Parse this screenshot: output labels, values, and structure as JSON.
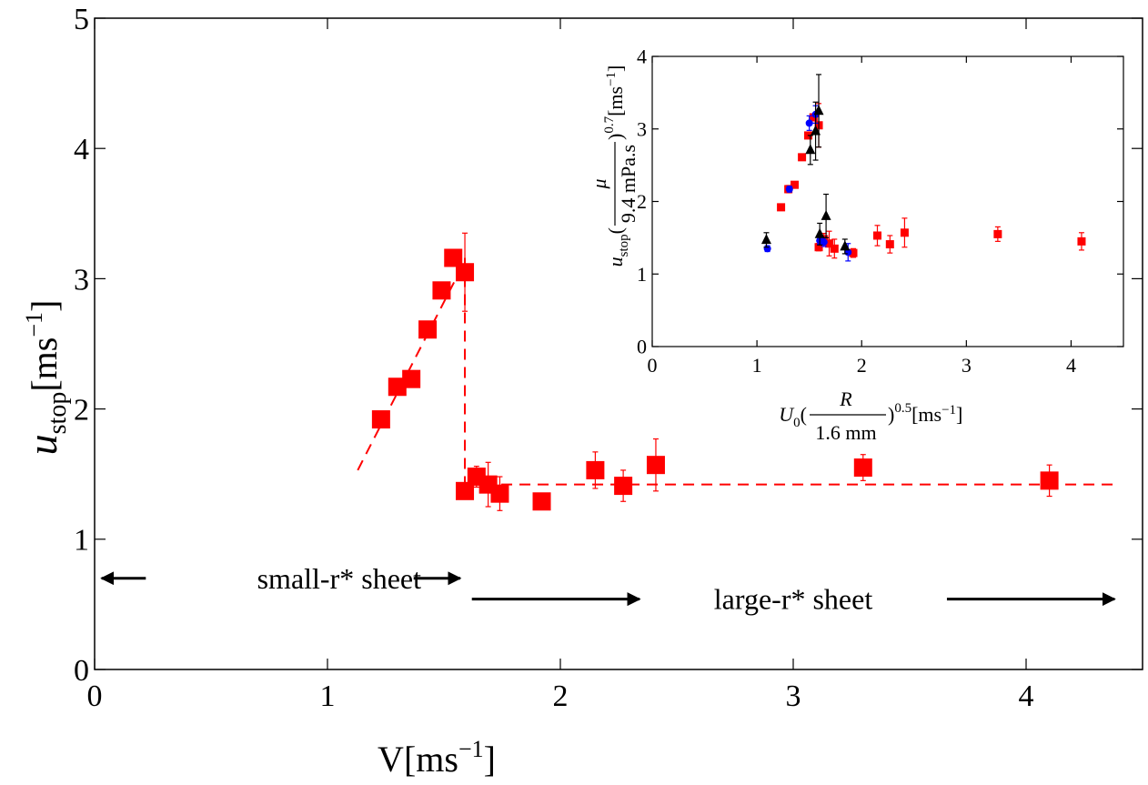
{
  "chart_data": [
    {
      "type": "scatter",
      "xlabel": {
        "base": "V",
        "unit": "[ms",
        "exp": "−1",
        "close": "]"
      },
      "ylabel": {
        "base": "u",
        "sub": "stop",
        "unit": "[ms",
        "exp": "−1",
        "close": "]"
      },
      "xlim": [
        0,
        4.5
      ],
      "ylim": [
        0,
        5
      ],
      "xticks": [
        "0",
        "1",
        "2",
        "3",
        "4"
      ],
      "yticks": [
        "0",
        "1",
        "2",
        "3",
        "4",
        "5"
      ],
      "grid": false,
      "series": [
        {
          "marker": "square",
          "color": "#ff0000",
          "points": [
            {
              "x": 1.23,
              "y": 1.92,
              "err": 0.03
            },
            {
              "x": 1.3,
              "y": 2.17,
              "err": 0.05
            },
            {
              "x": 1.36,
              "y": 2.23,
              "err": 0.04
            },
            {
              "x": 1.43,
              "y": 2.61,
              "err": 0.04
            },
            {
              "x": 1.49,
              "y": 2.91,
              "err": 0.04
            },
            {
              "x": 1.54,
              "y": 3.16,
              "err": 0.04
            },
            {
              "x": 1.59,
              "y": 3.05,
              "err": 0.3
            },
            {
              "x": 1.59,
              "y": 1.37,
              "err": 0.05
            },
            {
              "x": 1.64,
              "y": 1.48,
              "err": 0.08
            },
            {
              "x": 1.69,
              "y": 1.42,
              "err": 0.17
            },
            {
              "x": 1.74,
              "y": 1.35,
              "err": 0.13
            },
            {
              "x": 1.92,
              "y": 1.29,
              "err": 0.06
            },
            {
              "x": 2.15,
              "y": 1.53,
              "err": 0.14
            },
            {
              "x": 2.27,
              "y": 1.41,
              "err": 0.12
            },
            {
              "x": 2.41,
              "y": 1.57,
              "err": 0.2
            },
            {
              "x": 3.3,
              "y": 1.55,
              "err": 0.1
            },
            {
              "x": 4.1,
              "y": 1.45,
              "err": 0.12
            }
          ]
        }
      ],
      "fits": [
        {
          "style": "dashed",
          "color": "#ff0000",
          "from": [
            1.13,
            1.53
          ],
          "to": [
            1.58,
            3.1
          ]
        },
        {
          "style": "dashed",
          "color": "#ff0000",
          "from": [
            1.59,
            3.16
          ],
          "to": [
            1.59,
            1.42
          ]
        },
        {
          "style": "dashed",
          "color": "#ff0000",
          "from": [
            1.59,
            1.42
          ],
          "to": [
            4.38,
            1.42
          ]
        }
      ],
      "annotations": [
        {
          "text": "small-r* sheet",
          "x": 1.05,
          "y": 0.7,
          "arrows": [
            [
              0.03,
              0.22
            ],
            [
              1.37,
              1.57
            ]
          ]
        },
        {
          "text": "large-r* sheet",
          "x": 3.0,
          "y": 0.54,
          "arrows": [
            [
              2.34,
              1.62
            ],
            [
              3.66,
              4.38
            ]
          ]
        }
      ]
    },
    {
      "type": "scatter",
      "xlabel": {
        "pre": "U",
        "pre_sub": "0",
        "frac_num": "R",
        "frac_den": "1.6 mm",
        "exp": "0.5",
        "unit": "[ms",
        "unit_exp": "−1",
        "close": "]"
      },
      "ylabel": {
        "pre": "u",
        "pre_sub": "stop",
        "frac_num": "μ",
        "frac_den": "9.4 mPa.s",
        "exp": "0.7",
        "unit": "[ms",
        "unit_exp": "−1",
        "close": "]"
      },
      "xlim": [
        0,
        4.5
      ],
      "ylim": [
        0,
        4
      ],
      "xticks": [
        "0",
        "1",
        "2",
        "3",
        "4"
      ],
      "yticks": [
        "0",
        "1",
        "2",
        "3",
        "4"
      ],
      "grid": false,
      "series": [
        {
          "marker": "square",
          "color": "#ff0000",
          "points": [
            {
              "x": 1.23,
              "y": 1.92,
              "err": 0.03
            },
            {
              "x": 1.3,
              "y": 2.17,
              "err": 0.05
            },
            {
              "x": 1.36,
              "y": 2.23,
              "err": 0.04
            },
            {
              "x": 1.43,
              "y": 2.61,
              "err": 0.04
            },
            {
              "x": 1.49,
              "y": 2.91,
              "err": 0.04
            },
            {
              "x": 1.54,
              "y": 3.16,
              "err": 0.04
            },
            {
              "x": 1.59,
              "y": 3.05,
              "err": 0.3
            },
            {
              "x": 1.59,
              "y": 1.37,
              "err": 0.05
            },
            {
              "x": 1.64,
              "y": 1.48,
              "err": 0.08
            },
            {
              "x": 1.69,
              "y": 1.42,
              "err": 0.17
            },
            {
              "x": 1.74,
              "y": 1.35,
              "err": 0.13
            },
            {
              "x": 1.92,
              "y": 1.29,
              "err": 0.06
            },
            {
              "x": 2.15,
              "y": 1.53,
              "err": 0.14
            },
            {
              "x": 2.27,
              "y": 1.41,
              "err": 0.12
            },
            {
              "x": 2.41,
              "y": 1.57,
              "err": 0.2
            },
            {
              "x": 3.3,
              "y": 1.55,
              "err": 0.1
            },
            {
              "x": 4.1,
              "y": 1.45,
              "err": 0.12
            }
          ]
        },
        {
          "marker": "circle",
          "color": "#0000ff",
          "points": [
            {
              "x": 1.1,
              "y": 1.35,
              "err": 0.04
            },
            {
              "x": 1.31,
              "y": 2.17,
              "err": 0.04
            },
            {
              "x": 1.5,
              "y": 3.08,
              "err": 0.1
            },
            {
              "x": 1.56,
              "y": 3.2,
              "err": 0.12
            },
            {
              "x": 1.6,
              "y": 1.46,
              "err": 0.05
            },
            {
              "x": 1.64,
              "y": 1.44,
              "err": 0.06
            },
            {
              "x": 1.87,
              "y": 1.3,
              "err": 0.12
            }
          ]
        },
        {
          "marker": "triangle",
          "color": "#000000",
          "points": [
            {
              "x": 1.09,
              "y": 1.47,
              "err": 0.1
            },
            {
              "x": 1.51,
              "y": 2.71,
              "err": 0.2
            },
            {
              "x": 1.56,
              "y": 2.97,
              "err": 0.4
            },
            {
              "x": 1.59,
              "y": 3.25,
              "err": 0.5
            },
            {
              "x": 1.6,
              "y": 1.55,
              "err": 0.15
            },
            {
              "x": 1.66,
              "y": 1.8,
              "err": 0.3
            },
            {
              "x": 1.84,
              "y": 1.38,
              "err": 0.1
            }
          ]
        }
      ]
    }
  ]
}
